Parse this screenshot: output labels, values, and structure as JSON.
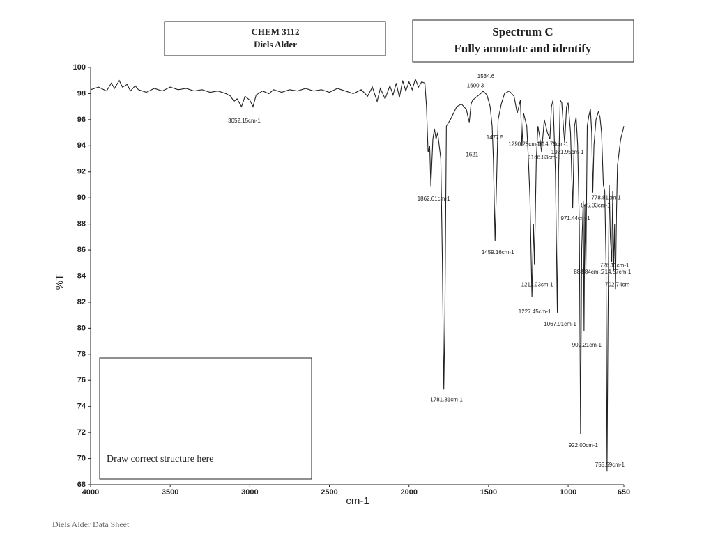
{
  "header": {
    "course": "CHEM 3112",
    "topic": "Diels Alder",
    "title": "Spectrum C",
    "instruction": "Fully annotate and identify"
  },
  "structure_box": "Draw correct structure here",
  "footer": "Diels Alder Data Sheet",
  "chart_data": {
    "type": "line",
    "x_label": "cm-1",
    "y_label": "%T",
    "color": "#222222",
    "grid": false,
    "xlim": [
      4000,
      650
    ],
    "xticks": [
      4000,
      3500,
      3000,
      2500,
      2000,
      1500,
      1000,
      650
    ],
    "ylim": [
      68,
      100
    ],
    "yticks": [
      68,
      70,
      72,
      74,
      76,
      78,
      80,
      82,
      84,
      86,
      88,
      90,
      92,
      94,
      96,
      98,
      100
    ],
    "x": [
      4000,
      3950,
      3900,
      3870,
      3850,
      3820,
      3800,
      3770,
      3750,
      3720,
      3700,
      3650,
      3600,
      3550,
      3500,
      3450,
      3400,
      3350,
      3300,
      3250,
      3200,
      3150,
      3120,
      3100,
      3080,
      3052.15,
      3030,
      3000,
      2980,
      2960,
      2920,
      2880,
      2850,
      2800,
      2750,
      2700,
      2650,
      2600,
      2550,
      2500,
      2450,
      2400,
      2350,
      2300,
      2260,
      2230,
      2200,
      2180,
      2150,
      2120,
      2100,
      2080,
      2060,
      2040,
      2020,
      2000,
      1980,
      1960,
      1940,
      1920,
      1900,
      1890,
      1880,
      1870,
      1862.61,
      1850,
      1840,
      1830,
      1820,
      1800,
      1790,
      1781.31,
      1775,
      1765,
      1740,
      1720,
      1700,
      1670,
      1640,
      1621,
      1610,
      1600.3,
      1570,
      1550,
      1534.6,
      1510,
      1490,
      1477.5,
      1470,
      1459.16,
      1450,
      1440,
      1420,
      1400,
      1370,
      1340,
      1320,
      1300,
      1290.28,
      1280,
      1260,
      1250,
      1240,
      1227.45,
      1218,
      1211.93,
      1200,
      1190,
      1180,
      1166.83,
      1150,
      1130,
      1114.79,
      1105,
      1095,
      1080,
      1067.91,
      1060,
      1050,
      1040,
      1030,
      1021.95,
      1010,
      1000,
      985,
      971.44,
      960,
      950,
      940,
      930,
      922.0,
      915,
      905,
      900.21,
      895,
      888.84,
      880,
      870,
      860,
      852,
      845.03,
      838,
      825,
      810,
      800,
      790,
      778.81,
      770,
      762,
      755.59,
      750,
      742,
      735,
      726.11,
      720,
      714.57,
      708,
      702.74,
      696,
      690,
      680,
      670,
      660,
      650
    ],
    "values": [
      98.3,
      98.5,
      98.2,
      98.8,
      98.4,
      99.0,
      98.5,
      98.7,
      98.2,
      98.6,
      98.3,
      98.1,
      98.4,
      98.2,
      98.5,
      98.3,
      98.4,
      98.2,
      98.3,
      98.1,
      98.2,
      98.0,
      97.8,
      97.4,
      97.6,
      97.0,
      97.8,
      97.5,
      97.0,
      97.9,
      98.2,
      98.0,
      98.3,
      98.1,
      98.3,
      98.2,
      98.4,
      98.2,
      98.3,
      98.1,
      98.4,
      98.2,
      98.0,
      98.3,
      97.8,
      98.5,
      97.4,
      98.4,
      97.6,
      98.6,
      97.9,
      98.8,
      97.7,
      99.0,
      98.2,
      98.9,
      98.3,
      99.1,
      98.5,
      98.9,
      98.8,
      97.0,
      93.5,
      94.0,
      90.9,
      94.5,
      95.3,
      94.5,
      95.0,
      93.0,
      85.0,
      75.3,
      80.0,
      95.5,
      96.0,
      96.5,
      97.0,
      97.2,
      96.8,
      95.8,
      97.2,
      97.5,
      97.8,
      98.0,
      98.2,
      97.9,
      97.0,
      95.5,
      93.0,
      86.7,
      91.0,
      96.0,
      97.2,
      98.0,
      98.2,
      97.8,
      96.5,
      97.5,
      94.0,
      96.5,
      95.5,
      93.0,
      90.0,
      82.4,
      88.0,
      84.9,
      93.0,
      95.5,
      94.8,
      93.5,
      96.0,
      95.0,
      94.5,
      97.0,
      97.5,
      92.0,
      81.2,
      92.0,
      97.5,
      97.3,
      95.5,
      94.2,
      97.0,
      97.3,
      95.0,
      89.2,
      95.5,
      96.2,
      94.0,
      88.0,
      71.9,
      86.0,
      89.8,
      79.8,
      89.5,
      84.3,
      95.5,
      96.3,
      96.8,
      95.0,
      90.4,
      94.0,
      96.0,
      96.6,
      96.2,
      95.0,
      91.0,
      90.5,
      85.0,
      69.0,
      80.0,
      91.0,
      87.0,
      85.1,
      90.5,
      84.4,
      88.0,
      83.0,
      89.0,
      92.5,
      93.5,
      94.5,
      95.0,
      95.5
    ],
    "annotations": [
      {
        "text": "3052.15cm-1",
        "x": 3052.15,
        "y": 95.9
      },
      {
        "text": "1862.61cm-1",
        "x": 1862.61,
        "y": 89.9
      },
      {
        "text": "1781.31cm-1",
        "x": 1781.31,
        "y": 74.5
      },
      {
        "text": "1600.3",
        "x": 1600.3,
        "y": 98.6
      },
      {
        "text": "1534.6",
        "x": 1534.6,
        "y": 99.3
      },
      {
        "text": "1621",
        "x": 1621,
        "y": 93.3
      },
      {
        "text": "1477.5",
        "x": 1477.5,
        "y": 94.6
      },
      {
        "text": "1459.16cm-1",
        "x": 1459.16,
        "y": 85.8
      },
      {
        "text": "1290.28cm-1",
        "x": 1290.28,
        "y": 94.1
      },
      {
        "text": "1114.79cm-1",
        "x": 1114.79,
        "y": 94.1
      },
      {
        "text": "1166.83cm-1",
        "x": 1166.83,
        "y": 93.1
      },
      {
        "text": "1021.95cm-1",
        "x": 1021.95,
        "y": 93.5
      },
      {
        "text": "1211.93cm-1",
        "x": 1211.93,
        "y": 83.3
      },
      {
        "text": "1227.45cm-1",
        "x": 1227.45,
        "y": 81.25
      },
      {
        "text": "1067.91cm-1",
        "x": 1067.91,
        "y": 80.3
      },
      {
        "text": "971.44cm-1",
        "x": 971.44,
        "y": 88.4
      },
      {
        "text": "778.81cm-1",
        "x": 778.81,
        "y": 90.0
      },
      {
        "text": "845.03cm-1",
        "x": 845.03,
        "y": 89.4
      },
      {
        "text": "888.84cm-1",
        "x": 888.84,
        "y": 84.3
      },
      {
        "text": "900.21cm-1",
        "x": 900.21,
        "y": 78.7
      },
      {
        "text": "922.00cm-1",
        "x": 922.0,
        "y": 71.0
      },
      {
        "text": "726.11cm-1",
        "x": 726.11,
        "y": 84.8
      },
      {
        "text": "714.57cm-1",
        "x": 714.57,
        "y": 84.3
      },
      {
        "text": "702.74cm-",
        "x": 702.74,
        "y": 83.3
      },
      {
        "text": "755.59cm-1",
        "x": 755.59,
        "y": 69.5
      }
    ]
  }
}
